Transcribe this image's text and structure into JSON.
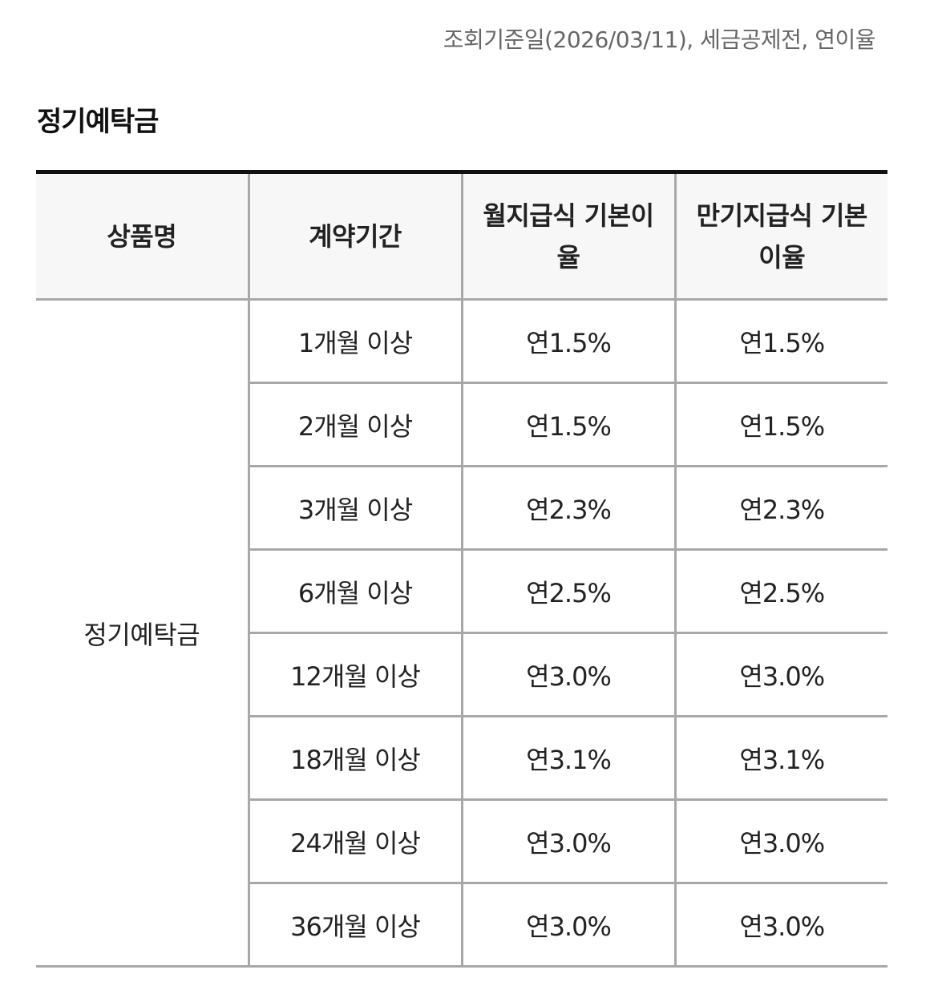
{
  "notice": "조회기준일(2026/03/11), 세금공제전, 연이율",
  "section_title": "정기예탁금",
  "table": {
    "headers": {
      "product": "상품명",
      "term": "계약기간",
      "monthly_rate": "월지급식 기본이율",
      "maturity_rate": "만기지급식 기본이율"
    },
    "product_name": "정기예탁금",
    "rows": [
      {
        "term": "1개월 이상",
        "monthly": "연1.5%",
        "maturity": "연1.5%"
      },
      {
        "term": "2개월 이상",
        "monthly": "연1.5%",
        "maturity": "연1.5%"
      },
      {
        "term": "3개월 이상",
        "monthly": "연2.3%",
        "maturity": "연2.3%"
      },
      {
        "term": "6개월 이상",
        "monthly": "연2.5%",
        "maturity": "연2.5%"
      },
      {
        "term": "12개월 이상",
        "monthly": "연3.0%",
        "maturity": "연3.0%"
      },
      {
        "term": "18개월 이상",
        "monthly": "연3.1%",
        "maturity": "연3.1%"
      },
      {
        "term": "24개월 이상",
        "monthly": "연3.0%",
        "maturity": "연3.0%"
      },
      {
        "term": "36개월 이상",
        "monthly": "연3.0%",
        "maturity": "연3.0%"
      }
    ]
  }
}
